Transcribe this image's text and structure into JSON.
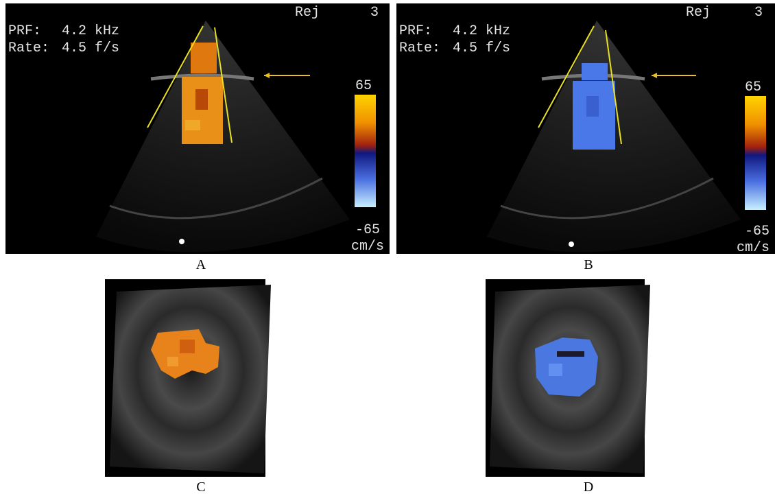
{
  "panels": [
    {
      "label": "A",
      "overlay": {
        "rej_label": "Rej",
        "rej_value": "3",
        "prf_label": "PRF:",
        "prf_value": "4.2 kHz",
        "rate_label": "Rate:",
        "rate_value": "4.5 f/s",
        "scale_max": "65",
        "scale_min": "-65",
        "scale_unit": "cm/s"
      }
    },
    {
      "label": "B",
      "overlay": {
        "rej_label": "Rej",
        "rej_value": "3",
        "prf_label": "PRF:",
        "prf_value": "4.2 kHz",
        "rate_label": "Rate:",
        "rate_value": "4.5 f/s",
        "scale_max": "65",
        "scale_min": "-65",
        "scale_unit": "cm/s"
      }
    },
    {
      "label": "C"
    },
    {
      "label": "D"
    }
  ]
}
